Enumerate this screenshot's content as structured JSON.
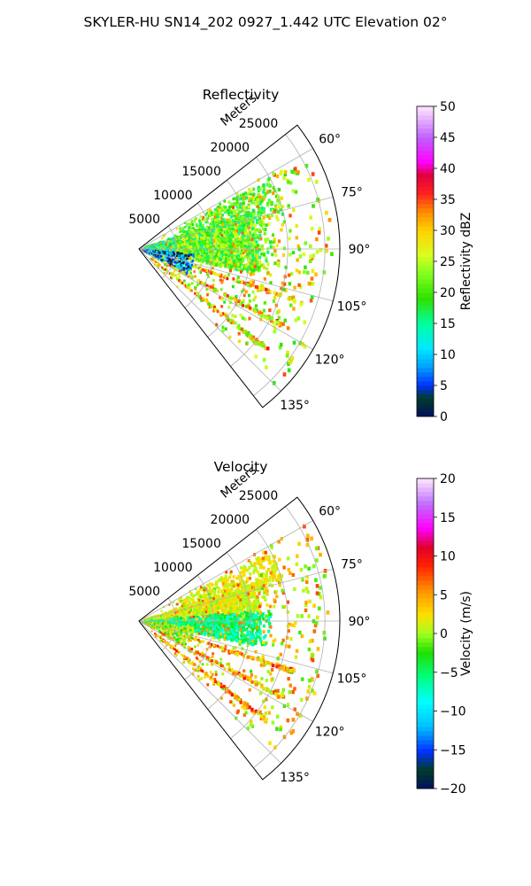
{
  "figure": {
    "title": "SKYLER-HU  SN14_202  0927_1.442 UTC Elevation 02°"
  },
  "chart_data": [
    {
      "type": "heatmap",
      "title": "Reflectivity",
      "projection": "polar-sector",
      "radial_axis": {
        "label": "Meters",
        "ticks": [
          5000,
          10000,
          15000,
          20000,
          25000
        ],
        "range": [
          0,
          27000
        ]
      },
      "angular_axis": {
        "ticks": [
          "60°",
          "75°",
          "90°",
          "105°",
          "120°",
          "135°"
        ],
        "range_deg": [
          52,
          142
        ]
      },
      "grid": true,
      "colorbar": {
        "label": "Reflectivity dBZ",
        "min": 0,
        "max": 50,
        "ticks": [
          0,
          5,
          10,
          15,
          20,
          25,
          30,
          35,
          40,
          45,
          50
        ]
      }
    },
    {
      "type": "heatmap",
      "title": "Velocity",
      "projection": "polar-sector",
      "radial_axis": {
        "label": "Meters",
        "ticks": [
          5000,
          10000,
          15000,
          20000,
          25000
        ],
        "range": [
          0,
          27000
        ]
      },
      "angular_axis": {
        "ticks": [
          "60°",
          "75°",
          "90°",
          "105°",
          "120°",
          "135°"
        ],
        "range_deg": [
          52,
          142
        ]
      },
      "grid": true,
      "colorbar": {
        "label": "Velocity (m/s)",
        "min": -20,
        "max": 20,
        "ticks": [
          -20,
          -15,
          -10,
          -5,
          0,
          5,
          10,
          15,
          20
        ]
      }
    }
  ]
}
